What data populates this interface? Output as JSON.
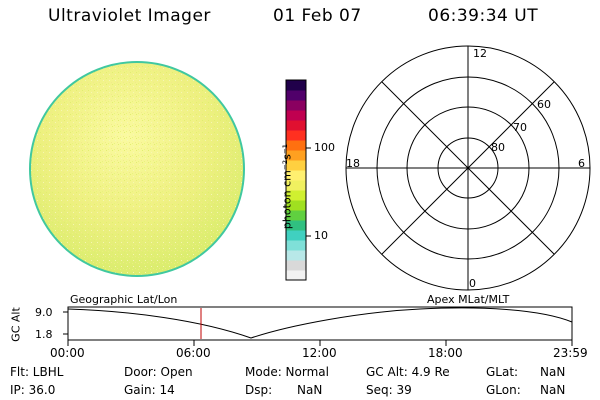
{
  "header": {
    "title": "Ultraviolet Imager",
    "date": "01 Feb 07",
    "time": "06:39:34 UT"
  },
  "colorbar": {
    "label": "photon cm⁻²s⁻¹",
    "ticks": [
      "100",
      "10"
    ],
    "colors": [
      "#f2f2f2",
      "#d9d9d9",
      "#b8e8e8",
      "#7fe0d8",
      "#40d0c0",
      "#30c080",
      "#60d040",
      "#a0e020",
      "#d0f030",
      "#f0f060",
      "#fff070",
      "#ffd040",
      "#ffa020",
      "#ff7010",
      "#ff3020",
      "#e01030",
      "#c00050",
      "#8a0060",
      "#50006a",
      "#20004a"
    ]
  },
  "polar": {
    "mlt_labels": [
      "12",
      "18",
      "6",
      "0"
    ],
    "lat_labels": [
      "60",
      "70",
      "80"
    ]
  },
  "timeline": {
    "ylabel": "GC Alt",
    "y_ticks": [
      "9.0",
      "1.8"
    ],
    "left_label": "Geographic Lat/Lon",
    "right_label": "Apex MLat/MLT",
    "x_ticks": [
      "00:00",
      "06:00",
      "12:00",
      "18:00",
      "23:59"
    ]
  },
  "info": {
    "row1": [
      "Flt: LBHL",
      "Door: Open",
      "Mode: Normal",
      "GC Alt: 4.9 Re",
      "GLat:",
      "NaN"
    ],
    "row2": [
      "IP: 36.0",
      "Gain: 14",
      "Dsp:",
      "NaN",
      "Seq: 39",
      "GLon:",
      "NaN"
    ]
  }
}
